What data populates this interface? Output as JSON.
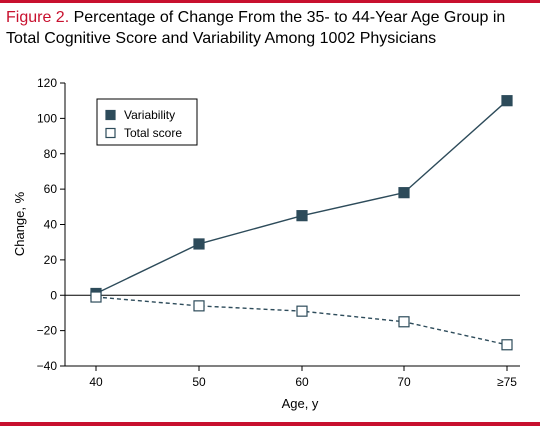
{
  "figure": {
    "label": "Figure 2.",
    "title": "Percentage of Change From the 35- to 44-Year Age Group in Total Cognitive Score and Variability Among 1002 Physicians"
  },
  "colors": {
    "accent": "#c8102e",
    "series_fill": "#2d4b5a",
    "line": "#2d4b5a"
  },
  "chart_data": {
    "type": "line",
    "xlabel": "Age, y",
    "ylabel": "Change, %",
    "categories": [
      "40",
      "50",
      "60",
      "70",
      "≥75"
    ],
    "ylim": [
      -40,
      120
    ],
    "yticks": [
      -40,
      -20,
      0,
      20,
      40,
      60,
      80,
      100,
      120
    ],
    "zero_line": true,
    "grid": false,
    "legend_position": "top-left",
    "series": [
      {
        "name": "Variability",
        "values": [
          1,
          29,
          45,
          58,
          110
        ],
        "marker": "filled-square",
        "line_style": "solid"
      },
      {
        "name": "Total score",
        "values": [
          -1,
          -6,
          -9,
          -15,
          -28
        ],
        "marker": "open-square",
        "line_style": "dashed"
      }
    ]
  }
}
